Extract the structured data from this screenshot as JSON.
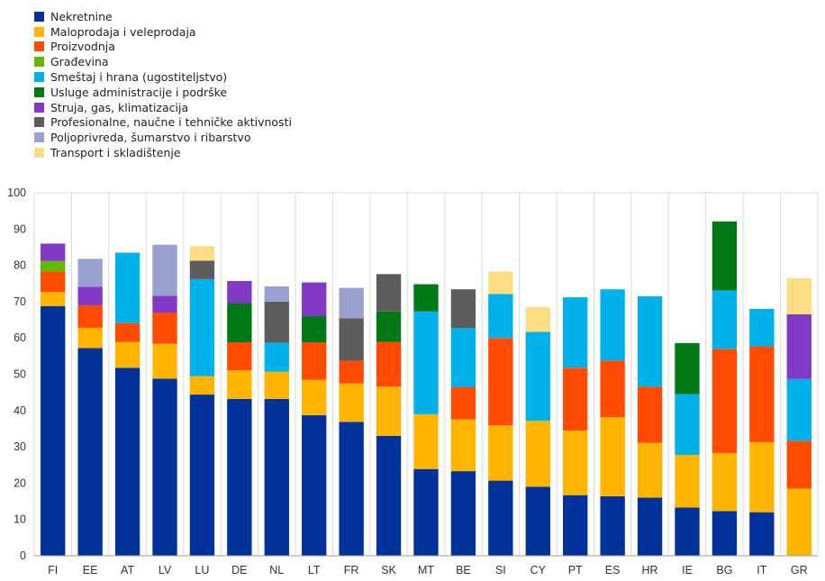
{
  "chart_data": {
    "type": "bar",
    "stacked": true,
    "title": "",
    "xlabel": "",
    "ylabel": "",
    "ylim": [
      0,
      100
    ],
    "yticks": [
      0,
      10,
      20,
      30,
      40,
      50,
      60,
      70,
      80,
      90,
      100
    ],
    "grid": "vertical separators between categories, no horizontal gridlines",
    "legend_position": "top-left",
    "categories": [
      "FI",
      "EE",
      "AT",
      "LV",
      "LU",
      "DE",
      "NL",
      "LT",
      "FR",
      "SK",
      "MT",
      "BE",
      "SI",
      "CY",
      "PT",
      "ES",
      "HR",
      "IE",
      "BG",
      "IT",
      "GR"
    ],
    "series": [
      {
        "name": "Nekretnine",
        "color": "#003299",
        "values": [
          68.8,
          57.2,
          51.8,
          48.8,
          44.4,
          43.2,
          43.2,
          38.7,
          36.9,
          33.0,
          23.9,
          23.3,
          20.7,
          19.0,
          16.7,
          16.4,
          16.0,
          13.3,
          12.3,
          12.0,
          0
        ]
      },
      {
        "name": "Maloprodaja i veleprodaja",
        "color": "#FFB400",
        "values": [
          3.9,
          5.6,
          7.1,
          9.6,
          5.1,
          7.9,
          7.5,
          9.8,
          10.6,
          13.6,
          15.1,
          14.3,
          15.2,
          18.2,
          17.8,
          21.8,
          15.1,
          14.5,
          16.0,
          19.3,
          18.5
        ]
      },
      {
        "name": "Proizvodnja",
        "color": "#FF4B00",
        "values": [
          5.6,
          6.2,
          5.2,
          8.6,
          0,
          7.7,
          0,
          10.3,
          6.2,
          12.3,
          0,
          8.9,
          24.1,
          0,
          17.3,
          15.6,
          15.5,
          0,
          28.7,
          26.4,
          13.2
        ]
      },
      {
        "name": "Građevina",
        "color": "#65B800",
        "values": [
          2.9,
          0,
          0,
          0,
          0,
          0,
          0,
          0,
          0,
          0,
          0,
          0,
          0,
          0,
          0,
          0,
          0,
          0,
          0,
          0,
          0
        ]
      },
      {
        "name": "Smeštaj i hrana (ugostiteljstvo)",
        "color": "#00B1EA",
        "values": [
          0,
          0,
          19.4,
          0,
          26.7,
          0,
          8.0,
          0,
          0,
          0,
          28.3,
          16.2,
          12.1,
          24.5,
          19.4,
          19.6,
          24.9,
          16.7,
          16.1,
          10.3,
          17.0
        ]
      },
      {
        "name": "Usluge administracije i podrške",
        "color": "#007816",
        "values": [
          0,
          0,
          0,
          0,
          0,
          10.8,
          0,
          7.2,
          0,
          8.4,
          7.5,
          0,
          0,
          0,
          0,
          0,
          0,
          14.1,
          19.0,
          0,
          0
        ]
      },
      {
        "name": "Struja, gas, klimatizacija",
        "color": "#8139C6",
        "values": [
          4.8,
          5.1,
          0,
          4.6,
          0,
          6.1,
          0,
          9.3,
          0,
          0,
          0,
          0,
          0,
          0,
          0,
          0,
          0,
          0,
          0,
          0,
          17.8
        ]
      },
      {
        "name": "Profesionalne, naučne i tehničke aktivnosti",
        "color": "#5C5C5C",
        "values": [
          0,
          0,
          0,
          0,
          5.1,
          0,
          11.3,
          0,
          11.7,
          10.3,
          0,
          10.7,
          0,
          0,
          0,
          0,
          0,
          0,
          0,
          0,
          0
        ]
      },
      {
        "name": "Poljoprivreda, šumarstvo i ribarstvo",
        "color": "#98A1D0",
        "values": [
          0,
          7.7,
          0,
          14.1,
          0,
          0,
          4.2,
          0,
          8.4,
          0,
          0,
          0,
          0,
          0,
          0,
          0,
          0,
          0,
          0,
          0,
          0
        ]
      },
      {
        "name": "Transport i skladištenje",
        "color": "#FDDD82",
        "values": [
          0,
          0,
          0,
          0,
          4.0,
          0,
          0,
          0,
          0,
          0,
          0,
          0,
          6.2,
          6.8,
          0,
          0,
          0,
          0,
          0,
          0,
          10.0
        ]
      }
    ]
  }
}
